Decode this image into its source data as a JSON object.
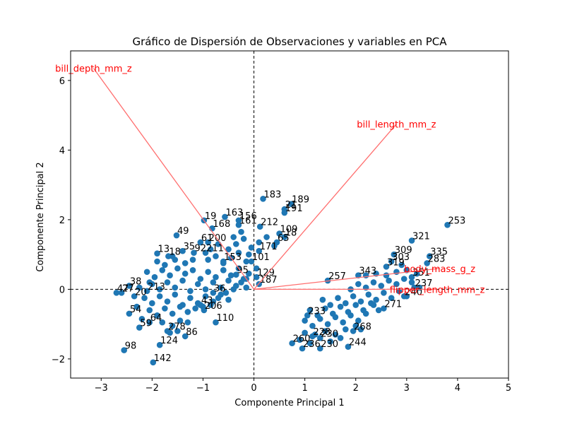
{
  "chart_data": {
    "type": "scatter",
    "title": "Gráfico de Dispersión de Observaciones y variables en PCA",
    "xlabel": "Componente Principal 1",
    "ylabel": "Componente Principal 2",
    "xlim": [
      -3.6,
      5.0
    ],
    "ylim": [
      -2.55,
      6.85
    ],
    "xticks": [
      -3,
      -2,
      -1,
      0,
      1,
      2,
      3,
      4,
      5
    ],
    "yticks": [
      -2,
      0,
      2,
      4,
      6
    ],
    "grid": false,
    "colors": {
      "points": "#1f77b4",
      "vectors": "#ff6e6e",
      "vector_labels": "#ff0000",
      "reference_lines": "#000000"
    },
    "reference_lines": {
      "x": 0,
      "y": 0,
      "style": "dashed"
    },
    "loadings": [
      {
        "name": "bill_depth_mm_z",
        "x": -3.15,
        "y": 6.35
      },
      {
        "name": "bill_length_mm_z",
        "x": 2.8,
        "y": 4.75
      },
      {
        "name": "body_mass_g_z",
        "x": 3.65,
        "y": 0.6
      },
      {
        "name": "flipper_length_mm_z",
        "x": 3.6,
        "y": 0.0
      }
    ],
    "labeled_points": [
      {
        "label": "183",
        "x": 0.18,
        "y": 2.6
      },
      {
        "label": "189",
        "x": 0.73,
        "y": 2.45
      },
      {
        "label": "21",
        "x": 0.6,
        "y": 2.3
      },
      {
        "label": "191",
        "x": 0.6,
        "y": 2.2
      },
      {
        "label": "163",
        "x": -0.57,
        "y": 2.08
      },
      {
        "label": "156",
        "x": -0.3,
        "y": 1.98
      },
      {
        "label": "19",
        "x": -0.98,
        "y": 1.98
      },
      {
        "label": "161",
        "x": -0.3,
        "y": 1.85
      },
      {
        "label": "212",
        "x": 0.12,
        "y": 1.8
      },
      {
        "label": "168",
        "x": -0.82,
        "y": 1.75
      },
      {
        "label": "109",
        "x": 0.5,
        "y": 1.6
      },
      {
        "label": "18",
        "x": 0.6,
        "y": 1.5
      },
      {
        "label": "49",
        "x": -1.52,
        "y": 1.55
      },
      {
        "label": "61",
        "x": -1.05,
        "y": 1.35
      },
      {
        "label": "200",
        "x": -0.9,
        "y": 1.35
      },
      {
        "label": "65",
        "x": 0.45,
        "y": 1.35
      },
      {
        "label": "171",
        "x": 0.1,
        "y": 1.1
      },
      {
        "label": "35",
        "x": -1.4,
        "y": 1.1
      },
      {
        "label": "92",
        "x": -1.18,
        "y": 1.05
      },
      {
        "label": "211",
        "x": -0.95,
        "y": 1.05
      },
      {
        "label": "13",
        "x": -1.9,
        "y": 1.03
      },
      {
        "label": "18",
        "x": -1.68,
        "y": 0.95
      },
      {
        "label": "101",
        "x": -0.05,
        "y": 0.8
      },
      {
        "label": "153",
        "x": -0.6,
        "y": 0.8
      },
      {
        "label": "129",
        "x": 0.05,
        "y": 0.35
      },
      {
        "label": "187",
        "x": 0.1,
        "y": 0.15
      },
      {
        "label": "95",
        "x": -0.35,
        "y": 0.42
      },
      {
        "label": "38",
        "x": -2.45,
        "y": 0.1
      },
      {
        "label": "36",
        "x": -0.8,
        "y": -0.1
      },
      {
        "label": "213",
        "x": -2.1,
        "y": -0.05
      },
      {
        "label": "20",
        "x": -2.35,
        "y": -0.2
      },
      {
        "label": "27",
        "x": -2.6,
        "y": -0.1
      },
      {
        "label": "47",
        "x": -2.7,
        "y": -0.1
      },
      {
        "label": "43",
        "x": -1.05,
        "y": -0.45
      },
      {
        "label": "206",
        "x": -0.98,
        "y": -0.6
      },
      {
        "label": "110",
        "x": -0.75,
        "y": -0.95
      },
      {
        "label": "54",
        "x": -2.45,
        "y": -0.7
      },
      {
        "label": "64",
        "x": -2.05,
        "y": -0.95
      },
      {
        "label": "59",
        "x": -2.25,
        "y": -1.1
      },
      {
        "label": "278",
        "x": -1.7,
        "y": -1.2
      },
      {
        "label": "86",
        "x": -1.35,
        "y": -1.35
      },
      {
        "label": "124",
        "x": -1.85,
        "y": -1.6
      },
      {
        "label": "98",
        "x": -2.55,
        "y": -1.75
      },
      {
        "label": "142",
        "x": -1.98,
        "y": -2.1
      },
      {
        "label": "253",
        "x": 3.8,
        "y": 1.85
      },
      {
        "label": "321",
        "x": 3.1,
        "y": 1.4
      },
      {
        "label": "335",
        "x": 3.45,
        "y": 0.95
      },
      {
        "label": "309",
        "x": 2.75,
        "y": 1.0
      },
      {
        "label": "283",
        "x": 3.4,
        "y": 0.75
      },
      {
        "label": "303",
        "x": 2.7,
        "y": 0.8
      },
      {
        "label": "319",
        "x": 2.6,
        "y": 0.65
      },
      {
        "label": "343",
        "x": 2.05,
        "y": 0.4
      },
      {
        "label": "351",
        "x": 3.1,
        "y": 0.35
      },
      {
        "label": "257",
        "x": 1.45,
        "y": 0.25
      },
      {
        "label": "237",
        "x": 3.15,
        "y": 0.05
      },
      {
        "label": "240",
        "x": 2.95,
        "y": -0.2
      },
      {
        "label": "271",
        "x": 2.55,
        "y": -0.55
      },
      {
        "label": "268",
        "x": 1.95,
        "y": -1.2
      },
      {
        "label": "230",
        "x": 1.3,
        "y": -1.4
      },
      {
        "label": "228",
        "x": 1.15,
        "y": -1.35
      },
      {
        "label": "260",
        "x": 0.75,
        "y": -1.55
      },
      {
        "label": "230",
        "x": 1.3,
        "y": -1.7
      },
      {
        "label": "236",
        "x": 0.95,
        "y": -1.7
      },
      {
        "label": "244",
        "x": 1.85,
        "y": -1.65
      },
      {
        "label": "233",
        "x": 1.05,
        "y": -0.75
      }
    ],
    "points": [
      [
        -2.1,
        0.5
      ],
      [
        -1.95,
        0.35
      ],
      [
        -1.8,
        0.55
      ],
      [
        -1.65,
        0.4
      ],
      [
        -1.5,
        0.6
      ],
      [
        -1.35,
        0.45
      ],
      [
        -1.2,
        0.55
      ],
      [
        -1.05,
        0.3
      ],
      [
        -0.9,
        0.5
      ],
      [
        -0.75,
        0.35
      ],
      [
        -0.6,
        0.55
      ],
      [
        -0.45,
        0.4
      ],
      [
        -0.3,
        0.6
      ],
      [
        -0.15,
        0.3
      ],
      [
        -2.0,
        0.15
      ],
      [
        -1.85,
        0.0
      ],
      [
        -1.7,
        0.2
      ],
      [
        -1.55,
        0.05
      ],
      [
        -1.4,
        0.25
      ],
      [
        -1.25,
        -0.05
      ],
      [
        -1.1,
        0.15
      ],
      [
        -0.95,
        0.0
      ],
      [
        -0.8,
        0.2
      ],
      [
        -0.65,
        0.05
      ],
      [
        -0.5,
        0.25
      ],
      [
        -0.35,
        0.1
      ],
      [
        -0.2,
        0.3
      ],
      [
        -2.15,
        -0.25
      ],
      [
        -2.0,
        -0.4
      ],
      [
        -1.85,
        -0.2
      ],
      [
        -1.7,
        -0.35
      ],
      [
        -1.55,
        -0.15
      ],
      [
        -1.4,
        -0.45
      ],
      [
        -1.25,
        -0.25
      ],
      [
        -1.1,
        -0.4
      ],
      [
        -0.95,
        -0.2
      ],
      [
        -0.8,
        -0.35
      ],
      [
        -0.65,
        -0.15
      ],
      [
        -0.5,
        -0.3
      ],
      [
        -2.05,
        -0.6
      ],
      [
        -1.9,
        -0.75
      ],
      [
        -1.75,
        -0.55
      ],
      [
        -1.6,
        -0.7
      ],
      [
        -1.45,
        -0.5
      ],
      [
        -1.3,
        -0.65
      ],
      [
        -1.15,
        -0.55
      ],
      [
        -1.0,
        -0.5
      ],
      [
        -1.8,
        -0.95
      ],
      [
        -1.6,
        -1.05
      ],
      [
        -1.45,
        -0.9
      ],
      [
        -0.9,
        0.85
      ],
      [
        -0.75,
        0.95
      ],
      [
        -0.6,
        0.75
      ],
      [
        -0.45,
        0.9
      ],
      [
        -0.3,
        1.05
      ],
      [
        -0.15,
        0.8
      ],
      [
        -0.5,
        1.15
      ],
      [
        -0.35,
        1.3
      ],
      [
        -0.2,
        1.45
      ],
      [
        -0.05,
        1.2
      ],
      [
        0.1,
        1.35
      ],
      [
        0.25,
        1.5
      ],
      [
        0.4,
        1.25
      ],
      [
        -0.7,
        1.3
      ],
      [
        -0.85,
        1.15
      ],
      [
        -1.2,
        0.85
      ],
      [
        -1.35,
        0.75
      ],
      [
        -1.55,
        0.85
      ],
      [
        -1.75,
        0.7
      ],
      [
        -0.25,
        1.65
      ],
      [
        -0.4,
        1.5
      ],
      [
        -0.1,
        1.0
      ],
      [
        0.05,
        0.6
      ],
      [
        -0.1,
        0.45
      ],
      [
        -0.25,
        0.2
      ],
      [
        -0.4,
        0.0
      ],
      [
        -0.55,
        -0.1
      ],
      [
        -0.7,
        -0.25
      ],
      [
        -0.85,
        -0.45
      ],
      [
        -1.3,
        -0.95
      ],
      [
        -1.5,
        -1.2
      ],
      [
        -1.65,
        -1.25
      ],
      [
        -2.2,
        -0.85
      ],
      [
        -2.3,
        -0.5
      ],
      [
        -2.25,
        0.05
      ],
      [
        -2.05,
        0.2
      ],
      [
        -1.9,
        0.8
      ],
      [
        -1.6,
        0.95
      ],
      [
        -0.6,
        0.55
      ],
      [
        -0.15,
        0.05
      ],
      [
        1.0,
        -0.9
      ],
      [
        1.15,
        -1.05
      ],
      [
        1.3,
        -0.85
      ],
      [
        1.45,
        -1.0
      ],
      [
        1.6,
        -0.8
      ],
      [
        1.75,
        -0.95
      ],
      [
        1.9,
        -0.75
      ],
      [
        2.05,
        -0.9
      ],
      [
        2.2,
        -0.7
      ],
      [
        1.1,
        -0.6
      ],
      [
        1.25,
        -0.75
      ],
      [
        1.4,
        -0.55
      ],
      [
        1.55,
        -0.7
      ],
      [
        1.7,
        -0.5
      ],
      [
        1.85,
        -0.65
      ],
      [
        2.0,
        -0.45
      ],
      [
        2.15,
        -0.6
      ],
      [
        2.3,
        -0.4
      ],
      [
        1.35,
        -0.3
      ],
      [
        1.5,
        -0.45
      ],
      [
        1.65,
        -0.25
      ],
      [
        1.8,
        -0.4
      ],
      [
        1.95,
        -0.2
      ],
      [
        2.1,
        -0.35
      ],
      [
        2.25,
        -0.15
      ],
      [
        2.4,
        -0.3
      ],
      [
        2.55,
        -0.1
      ],
      [
        2.7,
        -0.25
      ],
      [
        2.85,
        -0.05
      ],
      [
        3.0,
        -0.2
      ],
      [
        1.9,
        0.0
      ],
      [
        2.05,
        0.15
      ],
      [
        2.2,
        0.05
      ],
      [
        2.35,
        0.2
      ],
      [
        2.5,
        0.1
      ],
      [
        2.65,
        0.25
      ],
      [
        2.8,
        0.15
      ],
      [
        2.95,
        0.3
      ],
      [
        3.1,
        0.2
      ],
      [
        3.25,
        0.05
      ],
      [
        2.2,
        0.4
      ],
      [
        2.4,
        0.45
      ],
      [
        2.6,
        0.4
      ],
      [
        2.8,
        0.5
      ],
      [
        3.0,
        0.55
      ],
      [
        2.9,
        0.7
      ],
      [
        3.2,
        0.45
      ],
      [
        1.0,
        -1.25
      ],
      [
        1.2,
        -1.3
      ],
      [
        1.4,
        -1.2
      ],
      [
        1.6,
        -1.3
      ],
      [
        1.8,
        -1.15
      ],
      [
        2.0,
        -1.05
      ],
      [
        1.5,
        -1.5
      ],
      [
        1.7,
        -1.4
      ],
      [
        0.9,
        -1.45
      ],
      [
        1.1,
        -1.55
      ],
      [
        2.1,
        -1.15
      ],
      [
        2.35,
        -0.45
      ],
      [
        2.45,
        -0.6
      ]
    ]
  }
}
